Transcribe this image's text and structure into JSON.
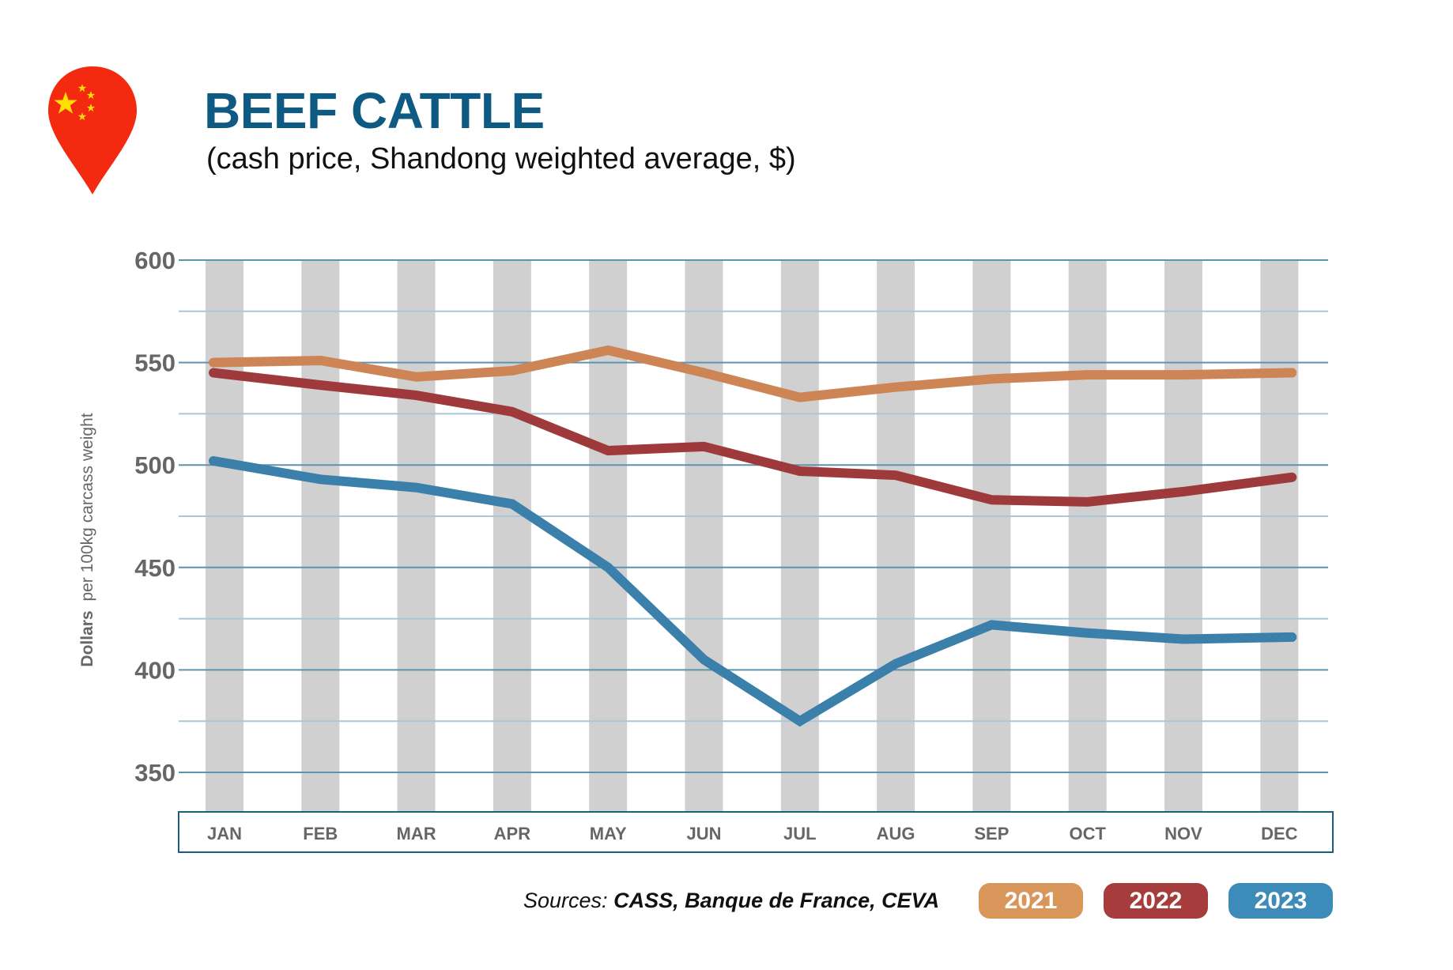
{
  "header": {
    "flag_icon": "china-flag-map-pin-icon",
    "title": "BEEF CATTLE",
    "subtitle": "(cash price, Shandong weighted average, $)"
  },
  "footer": {
    "sources_label": "Sources:",
    "sources_value": "CASS, Banque de France, CEVA"
  },
  "colors": {
    "title": "#0f5a82",
    "band": "#d0d0d0",
    "grid": "#5d93ad",
    "axis_box": "#1d5e80",
    "tick_text": "#666666"
  },
  "chart_data": {
    "type": "line",
    "title": "BEEF CATTLE",
    "subtitle": "(cash price, Shandong weighted average, $)",
    "xlabel": "",
    "ylabel_bold": "Dollars",
    "ylabel_rest": "per 100kg carcass weight",
    "ylabel": "Dollars per 100kg carcass weight",
    "categories": [
      "JAN",
      "FEB",
      "MAR",
      "APR",
      "MAY",
      "JUN",
      "JUL",
      "AUG",
      "SEP",
      "OCT",
      "NOV",
      "DEC"
    ],
    "ylim": [
      330,
      600
    ],
    "yticks": [
      350,
      400,
      450,
      500,
      550,
      600
    ],
    "minor_grid": [
      375,
      425,
      475,
      525,
      575
    ],
    "grid": true,
    "legend_position": "bottom-right",
    "series": [
      {
        "name": "2021",
        "color": "#d9965a",
        "line_color": "#cd8556",
        "values": [
          550,
          551,
          543,
          546,
          556,
          545,
          533,
          538,
          542,
          544,
          544,
          545
        ]
      },
      {
        "name": "2022",
        "color": "#a63c3c",
        "line_color": "#9e3a3b",
        "values": [
          545,
          539,
          534,
          526,
          507,
          509,
          497,
          495,
          483,
          482,
          487,
          494
        ]
      },
      {
        "name": "2023",
        "color": "#3d8bb8",
        "line_color": "#3a80ab",
        "values": [
          502,
          493,
          489,
          481,
          450,
          405,
          375,
          403,
          422,
          418,
          415,
          416
        ]
      }
    ]
  }
}
